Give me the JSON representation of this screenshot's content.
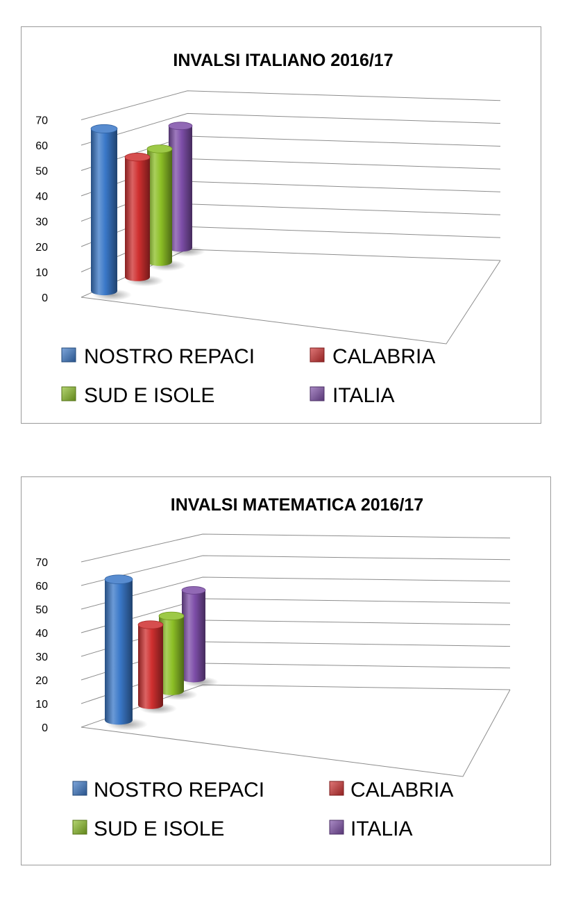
{
  "chart_data": [
    {
      "type": "bar",
      "title": "INVALSI  ITALIANO 2016/17",
      "categories": [
        "NOSTRO REPACI",
        "CALABRIA",
        "SUD E ISOLE",
        "ITALIA"
      ],
      "values": [
        64,
        48,
        47,
        52
      ],
      "ylim": [
        0,
        70
      ],
      "yticks": [
        "0",
        "10",
        "20",
        "30",
        "40",
        "50",
        "60",
        "70"
      ],
      "grid": true,
      "legend": "bottom",
      "colors": [
        "#3a78c8",
        "#cf2f2f",
        "#8cbf26",
        "#7d4ea8"
      ]
    },
    {
      "type": "bar",
      "title": "INVALSI  MATEMATICA 2016/17",
      "categories": [
        "NOSTRO REPACI",
        "CALABRIA",
        "SUD E ISOLE",
        "ITALIA"
      ],
      "values": [
        60,
        35,
        34,
        41
      ],
      "ylim": [
        0,
        70
      ],
      "yticks": [
        "0",
        "10",
        "20",
        "30",
        "40",
        "50",
        "60",
        "70"
      ],
      "grid": true,
      "legend": "bottom",
      "colors": [
        "#3a78c8",
        "#cf2f2f",
        "#8cbf26",
        "#7d4ea8"
      ]
    }
  ]
}
